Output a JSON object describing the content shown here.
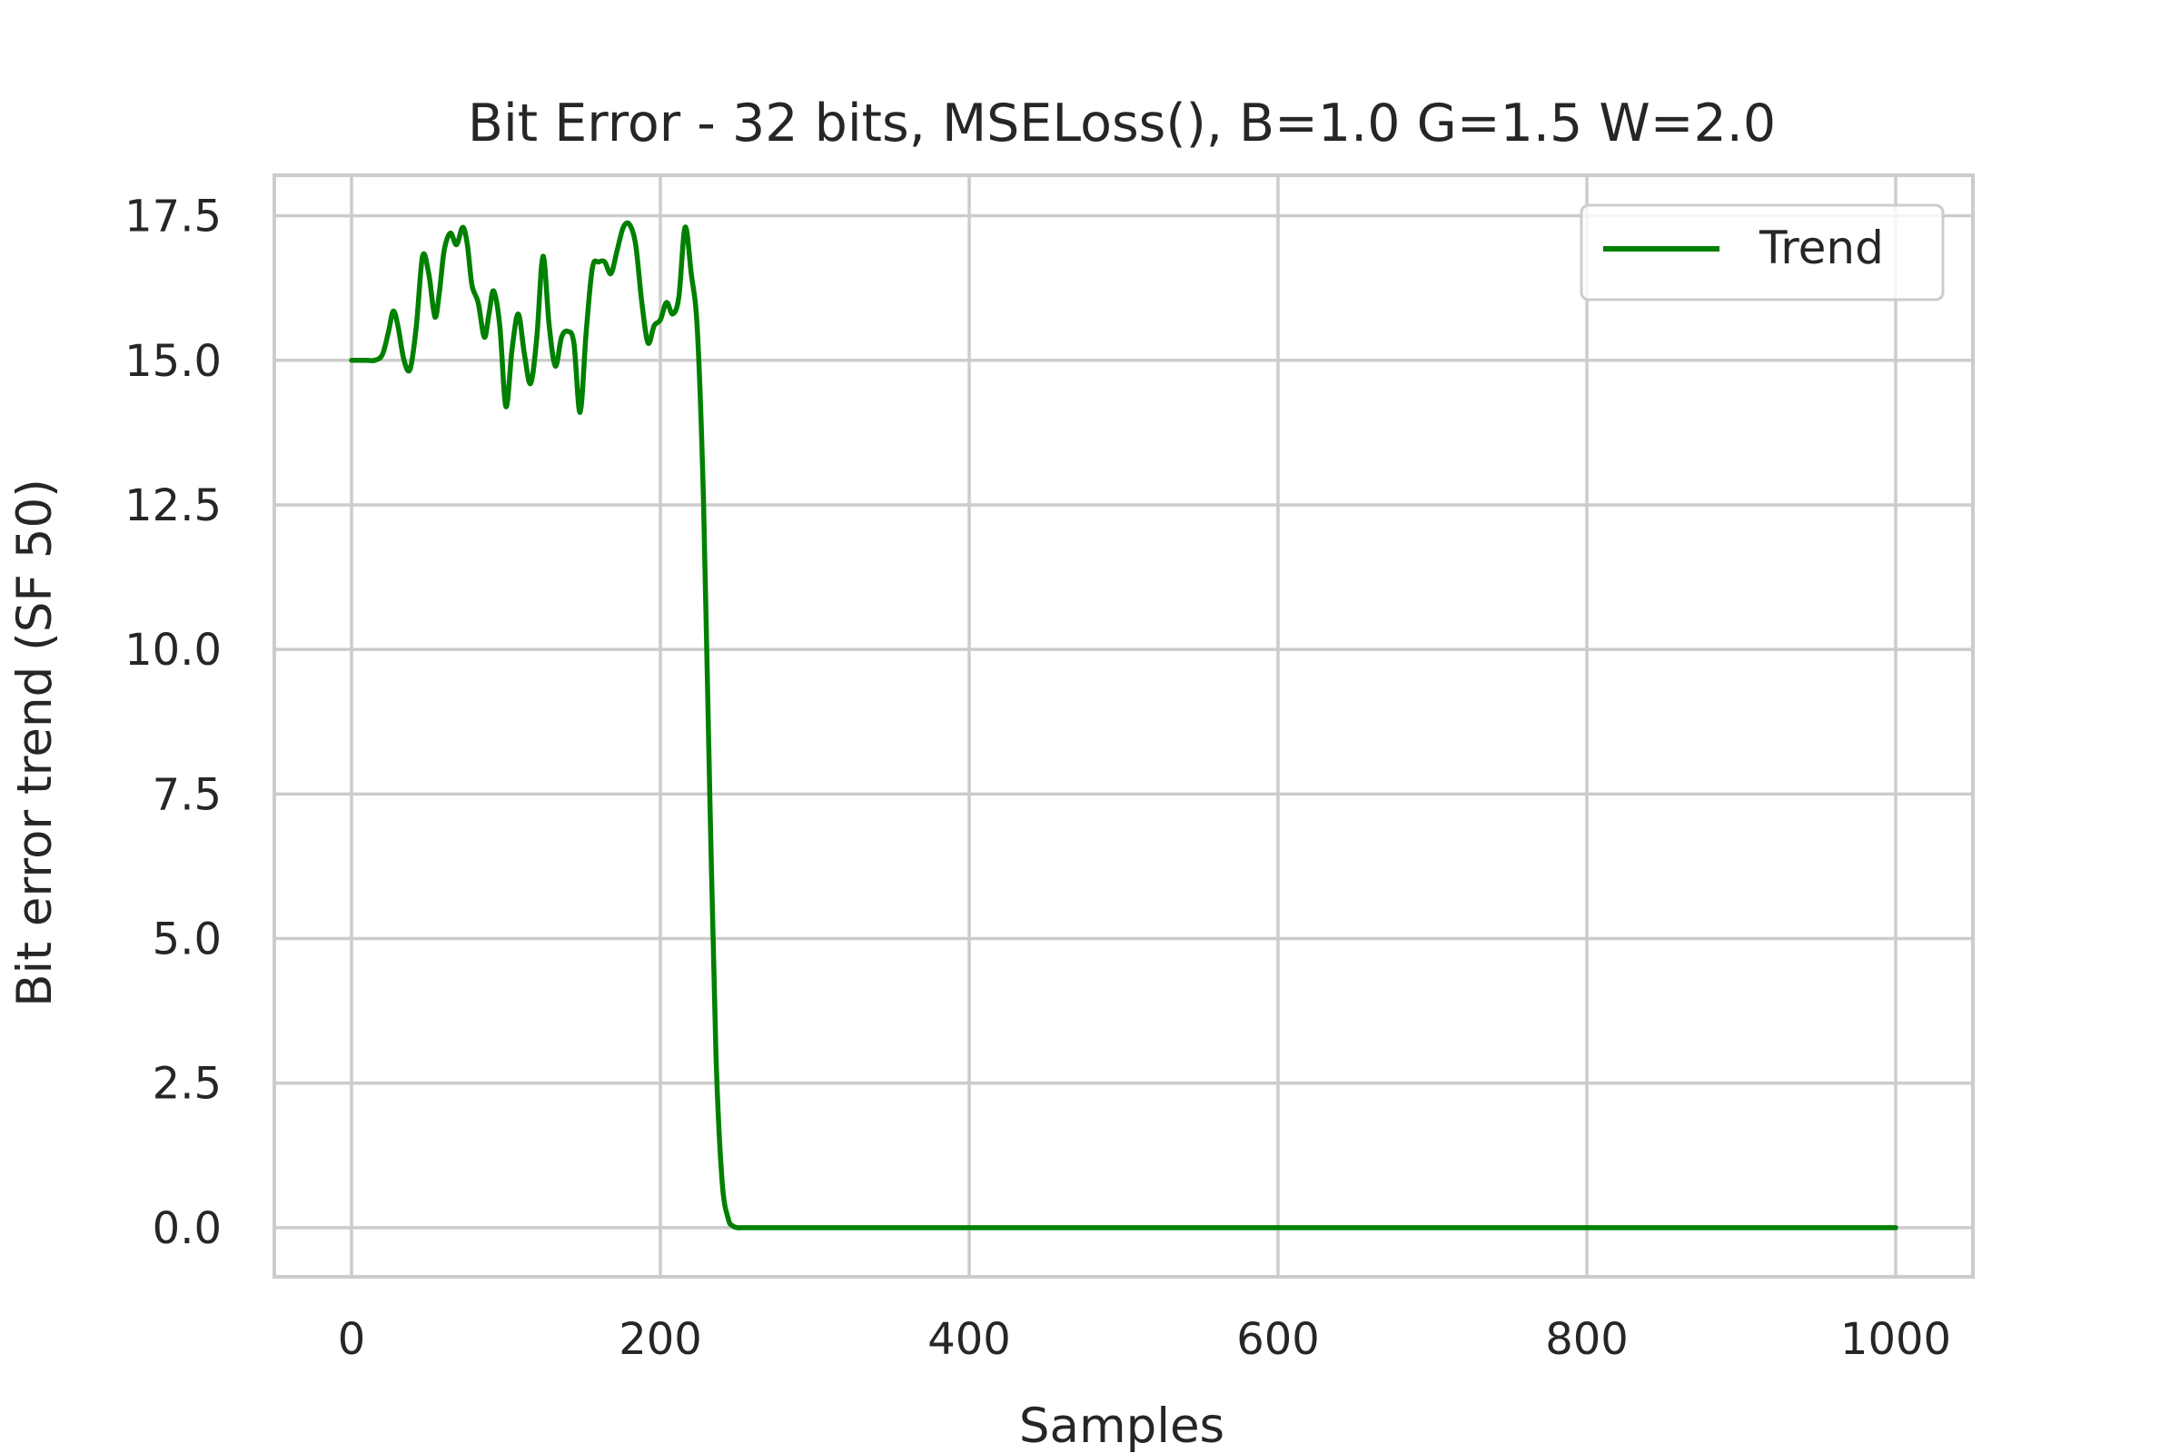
{
  "chart_data": {
    "type": "line",
    "title": "Bit Error - 32 bits, MSELoss(), B=1.0 G=1.5 W=2.0",
    "xlabel": "Samples",
    "ylabel": "Bit error trend (SF 50)",
    "xlim": [
      -50,
      1050
    ],
    "ylim": [
      -0.85,
      18.2
    ],
    "xticks": [
      0,
      200,
      400,
      600,
      800,
      1000
    ],
    "xtick_labels": [
      "0",
      "200",
      "400",
      "600",
      "800",
      "1000"
    ],
    "yticks": [
      0.0,
      2.5,
      5.0,
      7.5,
      10.0,
      12.5,
      15.0,
      17.5
    ],
    "ytick_labels": [
      "0.0",
      "2.5",
      "5.0",
      "7.5",
      "10.0",
      "12.5",
      "15.0",
      "17.5"
    ],
    "grid": true,
    "legend": {
      "position": "top-right",
      "entries": [
        "Trend"
      ]
    },
    "series": [
      {
        "name": "Trend",
        "color": "#008000",
        "x": [
          0,
          10,
          15,
          20,
          24,
          27,
          30,
          34,
          38,
          42,
          46,
          50,
          54,
          57,
          60,
          64,
          68,
          72,
          75,
          78,
          82,
          86,
          89,
          92,
          96,
          100,
          104,
          108,
          112,
          116,
          120,
          124,
          128,
          132,
          136,
          140,
          144,
          148,
          152,
          156,
          160,
          164,
          168,
          172,
          176,
          180,
          184,
          188,
          192,
          196,
          200,
          204,
          208,
          212,
          216,
          220,
          224,
          228,
          232,
          236,
          240,
          244,
          247,
          250,
          253,
          256,
          259,
          262,
          264,
          266,
          268,
          270,
          272,
          275,
          280,
          300,
          400,
          600,
          800,
          1000
        ],
        "y": [
          15.0,
          15.0,
          15.0,
          15.1,
          15.5,
          15.85,
          15.6,
          15.0,
          14.85,
          15.6,
          16.8,
          16.5,
          15.75,
          16.2,
          16.9,
          17.2,
          17.0,
          17.3,
          17.0,
          16.3,
          16.0,
          15.4,
          15.8,
          16.2,
          15.6,
          14.2,
          15.2,
          15.8,
          15.1,
          14.6,
          15.4,
          16.8,
          15.6,
          14.9,
          15.4,
          15.5,
          15.3,
          14.1,
          15.5,
          16.6,
          16.7,
          16.7,
          16.5,
          16.9,
          17.3,
          17.35,
          17.0,
          16.0,
          15.3,
          15.6,
          15.7,
          16.0,
          15.8,
          16.1,
          17.3,
          16.5,
          15.5,
          12.5,
          7.5,
          3.0,
          0.8,
          0.15,
          0.03,
          0.0,
          0.0,
          0.0,
          0.0,
          0.0,
          0.0,
          0.0,
          0.0,
          0.0,
          0.0,
          0.0,
          0.0,
          0.0,
          0.0,
          0.0,
          0.0,
          0.0
        ]
      }
    ]
  }
}
